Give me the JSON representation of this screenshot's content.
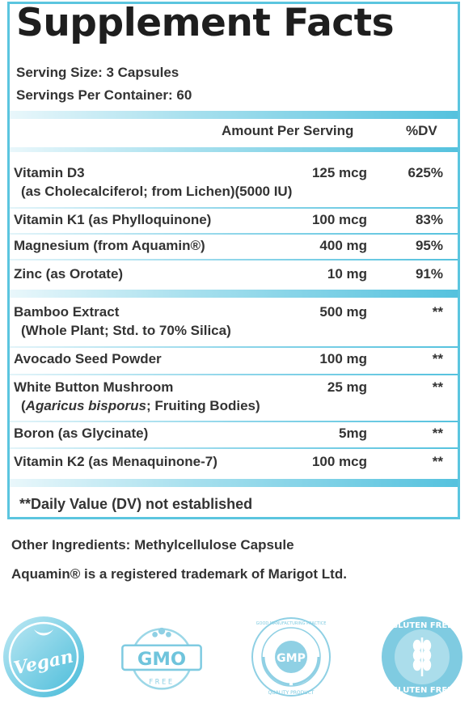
{
  "title": "Supplement Facts",
  "serving_size": "Serving Size: 3 Capsules",
  "servings_per_container": "Servings Per Container: 60",
  "header": {
    "amount": "Amount Per Serving",
    "dv": "%DV"
  },
  "group1": [
    {
      "name": "Vitamin D3",
      "sub": "(as Cholecalciferol; from Lichen)(5000 IU)",
      "amount": "125 mcg",
      "dv": "625%"
    },
    {
      "name": "Vitamin K1 (as Phylloquinone)",
      "amount": "100 mcg",
      "dv": "83%"
    },
    {
      "name": "Magnesium (from Aquamin®)",
      "amount": "400 mg",
      "dv": "95%"
    },
    {
      "name": "Zinc (as Orotate)",
      "amount": "10 mg",
      "dv": "91%"
    }
  ],
  "group2": [
    {
      "name": "Bamboo Extract",
      "sub": "(Whole Plant; Std. to 70% Silica)",
      "amount": "500 mg",
      "dv": "**"
    },
    {
      "name": "Avocado Seed Powder",
      "amount": "100 mg",
      "dv": "**"
    },
    {
      "name": "White Button Mushroom",
      "sub_italic": "Agaricus bisporus",
      "sub_rest": "; Fruiting Bodies)",
      "amount": "25 mg",
      "dv": "**"
    },
    {
      "name": "Boron (as Glycinate)",
      "amount": "5mg",
      "dv": "**"
    },
    {
      "name": "Vitamin K2 (as Menaquinone-7)",
      "amount": "100 mcg",
      "dv": "**"
    }
  ],
  "footnote": "**Daily Value (DV) not established",
  "other_ingredients": "Other Ingredients: Methylcellulose Capsule",
  "trademark": "Aquamin® is a registered trademark of Marigot Ltd.",
  "badges": {
    "vegan": "Vegan",
    "gmo_main": "GMO",
    "gmo_free": "FREE",
    "gmp_main": "GMP",
    "gmp_top": "GOOD MANUFACTURING PRACTICE",
    "gmp_bottom": "QUALITY PRODUCT",
    "gluten_top": "GLUTEN FREE",
    "gluten_bottom": "GLUTEN FREE"
  },
  "colors": {
    "accent": "#5bc5df",
    "accent_dark": "#2aa9cc",
    "text": "#333333"
  }
}
